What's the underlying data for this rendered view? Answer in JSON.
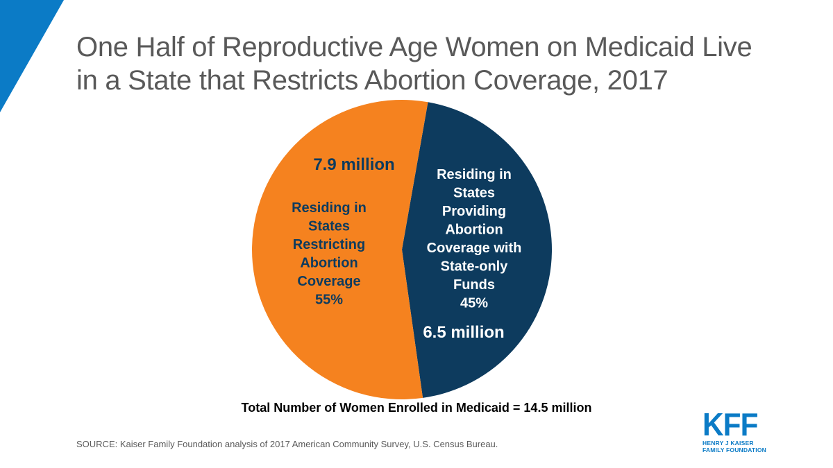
{
  "title": {
    "line1": "One Half of Reproductive Age Women on Medicaid Live",
    "line2": "in a State that Restricts Abortion Coverage, 2017"
  },
  "colors": {
    "accent_blue": "#0b7bc6",
    "restricting": "#f5821f",
    "providing": "#0d3b5e"
  },
  "chart_data": {
    "type": "pie",
    "total_label": "Total Number of Women Enrolled in Medicaid = 14.5 million",
    "slices": [
      {
        "key": "providing",
        "value": 45,
        "count_label": "6.5 million",
        "label_lines": [
          "Residing in",
          "States",
          "Providing",
          "Abortion",
          "Coverage with",
          "State-only",
          "Funds",
          "45%"
        ],
        "color": "#0d3b5e"
      },
      {
        "key": "restricting",
        "value": 55,
        "count_label": "7.9 million",
        "label_lines": [
          "Residing in",
          "States",
          "Restricting",
          "Abortion",
          "Coverage",
          "55%"
        ],
        "color": "#f5821f"
      }
    ]
  },
  "source": "SOURCE: Kaiser Family Foundation analysis of 2017 American Community Survey, U.S. Census Bureau.",
  "logo": {
    "mark": "KFF",
    "line1": "HENRY J KAISER",
    "line2": "FAMILY FOUNDATION"
  }
}
